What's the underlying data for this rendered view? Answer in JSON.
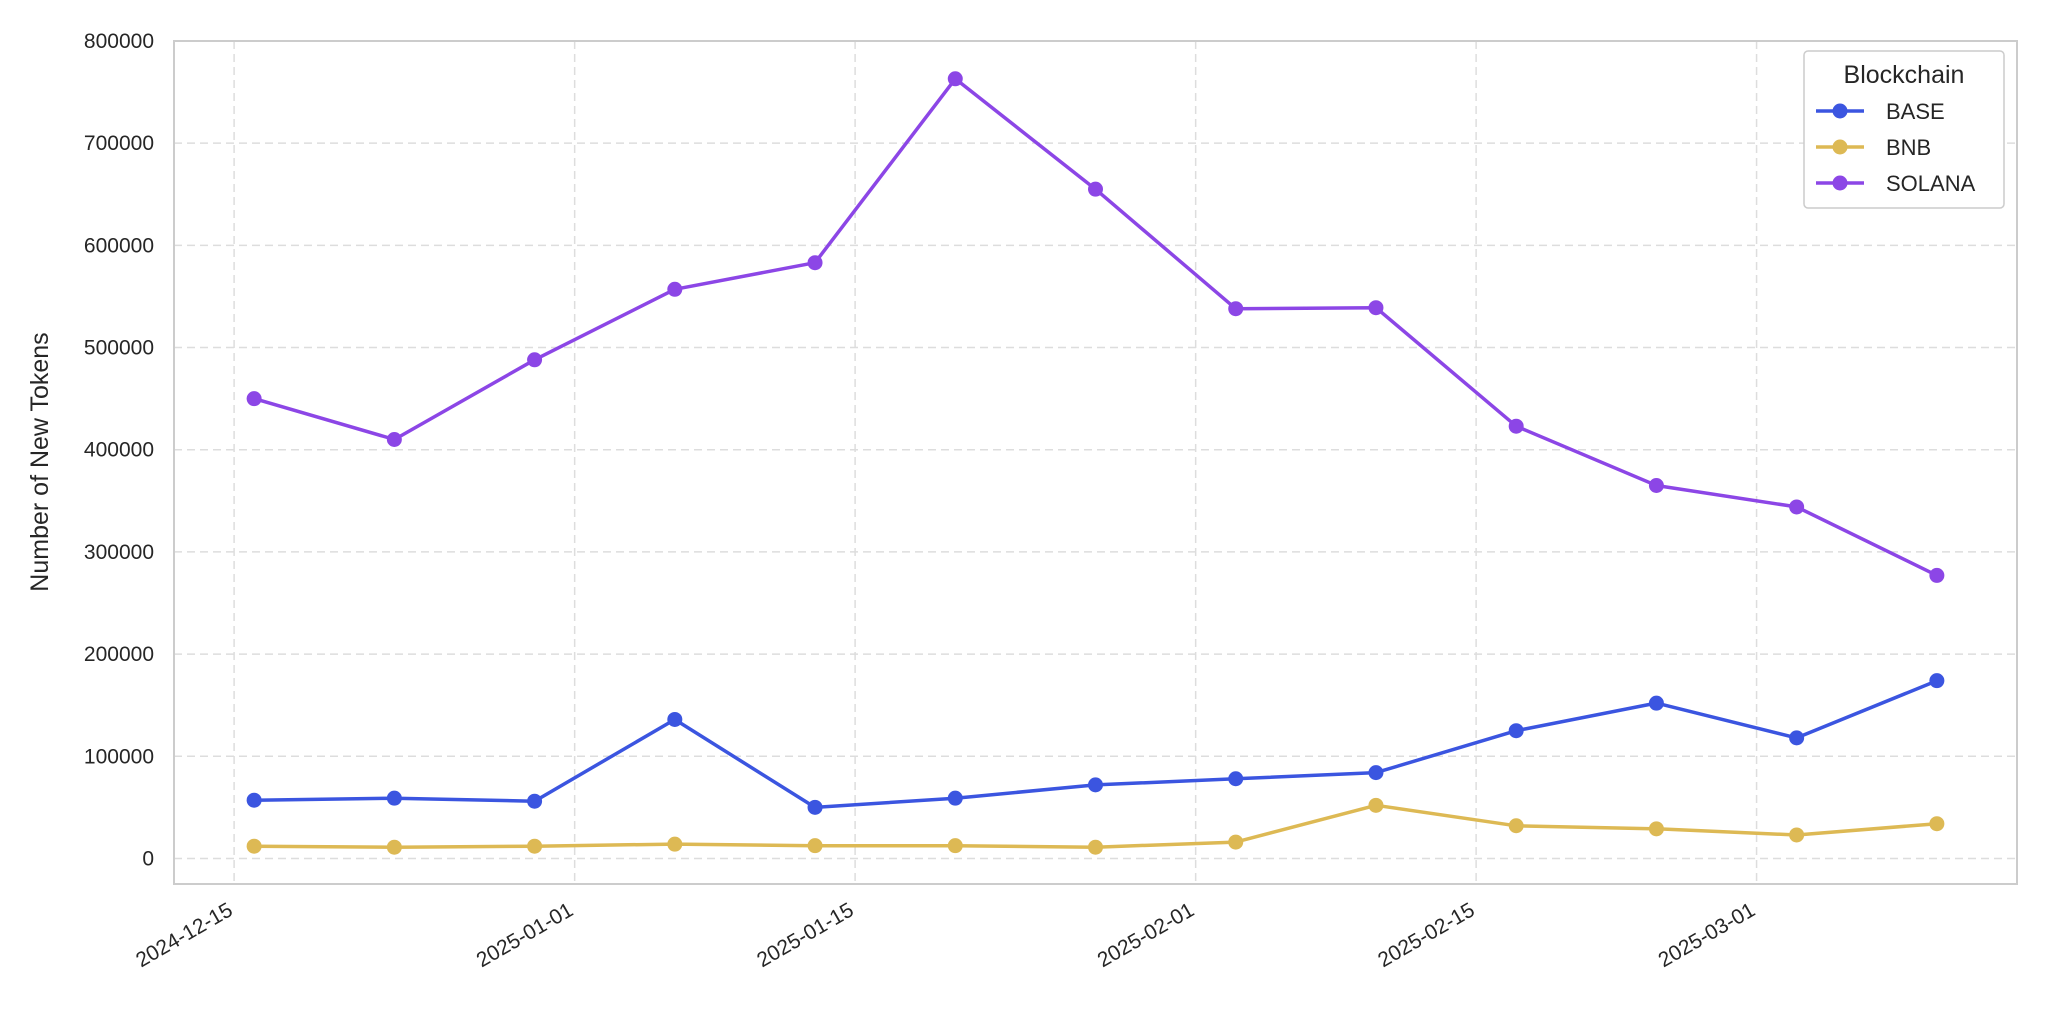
{
  "chart_data": {
    "type": "line",
    "title": "",
    "xlabel": "",
    "ylabel": "Number of New Tokens",
    "x": [
      "2024-12-16",
      "2024-12-23",
      "2024-12-30",
      "2025-01-06",
      "2025-01-13",
      "2025-01-20",
      "2025-01-27",
      "2025-02-03",
      "2025-02-10",
      "2025-02-17",
      "2025-02-24",
      "2025-03-03",
      "2025-03-10"
    ],
    "x_ticks": [
      "2024-12-15",
      "2025-01-01",
      "2025-01-15",
      "2025-02-01",
      "2025-02-15",
      "2025-03-01"
    ],
    "x_range": [
      "2024-12-12",
      "2025-03-14"
    ],
    "y_ticks": [
      0,
      100000,
      200000,
      300000,
      400000,
      500000,
      600000,
      700000,
      800000
    ],
    "ylim": [
      -25000,
      800000
    ],
    "grid": true,
    "legend": {
      "title": "Blockchain",
      "placement": "top-right"
    },
    "series": [
      {
        "name": "BASE",
        "color": "#3b55e0",
        "values": [
          57000,
          59000,
          56000,
          136000,
          50000,
          59000,
          72000,
          78000,
          84000,
          125000,
          152000,
          118000,
          174000
        ]
      },
      {
        "name": "BNB",
        "color": "#ddb954",
        "values": [
          12000,
          11000,
          12000,
          14000,
          12500,
          12500,
          11000,
          16000,
          52000,
          32000,
          29000,
          23000,
          34000
        ]
      },
      {
        "name": "SOLANA",
        "color": "#8c46e6",
        "values": [
          450000,
          410000,
          488000,
          557000,
          583000,
          763000,
          655000,
          538000,
          539000,
          423000,
          365000,
          344000,
          277000
        ]
      }
    ]
  }
}
